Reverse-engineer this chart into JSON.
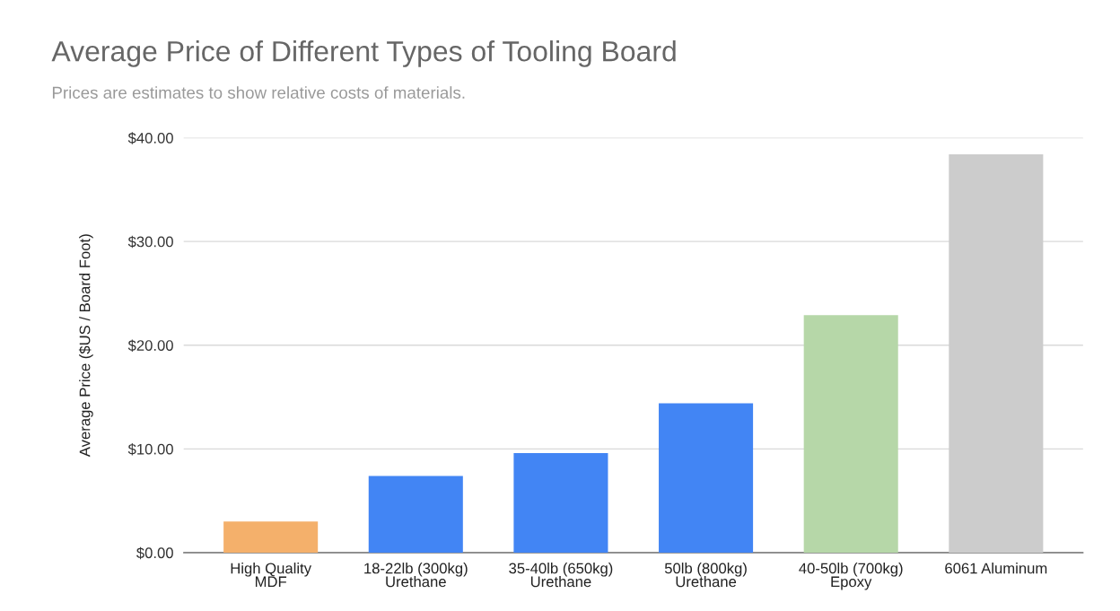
{
  "chart_data": {
    "type": "bar",
    "title": "Average Price of Different Types of Tooling Board",
    "subtitle": "Prices are estimates to show relative costs of materials.",
    "ylabel": "Average Price ($US / Board Foot)",
    "categories": [
      "High Quality\nMDF",
      "18-22lb (300kg)\nUrethane",
      "35-40lb (650kg)\nUrethane",
      "50lb (800kg)\nUrethane",
      "40-50lb (700kg)\nEpoxy",
      "6061 Aluminum"
    ],
    "values": [
      3.0,
      7.4,
      9.6,
      14.4,
      22.9,
      38.4
    ],
    "colors": [
      "#f4b06b",
      "#4285f4",
      "#4285f4",
      "#4285f4",
      "#b6d7a8",
      "#cccccc"
    ],
    "ylim": [
      0,
      40
    ],
    "yticks": [
      {
        "value": 0,
        "label": "$0.00"
      },
      {
        "value": 10,
        "label": "$10.00"
      },
      {
        "value": 20,
        "label": "$20.00"
      },
      {
        "value": 30,
        "label": "$30.00"
      },
      {
        "value": 40,
        "label": "$40.00"
      }
    ],
    "grid": "y",
    "legend": false
  }
}
